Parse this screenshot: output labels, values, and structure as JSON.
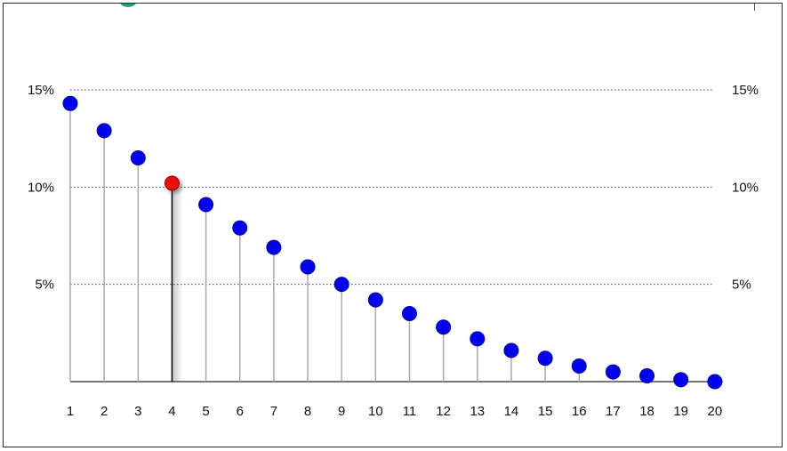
{
  "chart_data": {
    "type": "scatter",
    "style": "lollipop",
    "x": [
      1,
      2,
      3,
      4,
      5,
      6,
      7,
      8,
      9,
      10,
      11,
      12,
      13,
      14,
      15,
      16,
      17,
      18,
      19,
      20
    ],
    "series": [
      {
        "values": [
          14.3,
          12.9,
          11.5,
          10.2,
          9.1,
          7.9,
          6.9,
          5.9,
          5.0,
          4.2,
          3.5,
          2.8,
          2.2,
          1.6,
          1.2,
          0.8,
          0.5,
          0.3,
          0.1,
          0.0
        ]
      }
    ],
    "highlight_index": 3,
    "ylim": [
      0,
      15
    ],
    "y_ticks": [
      5,
      10,
      15
    ],
    "y_tick_labels": [
      "5%",
      "10%",
      "15%"
    ],
    "y_tick_labels_right": [
      "5%",
      "10%",
      "15%"
    ],
    "x_tick_labels": [
      "1",
      "2",
      "3",
      "4",
      "5",
      "6",
      "7",
      "8",
      "9",
      "10",
      "11",
      "12",
      "13",
      "14",
      "15",
      "16",
      "17",
      "18",
      "19",
      "20"
    ],
    "grid": "dotted-horizontal",
    "title": "",
    "xlabel": "",
    "ylabel": "",
    "colors": {
      "point": "#0000ee",
      "highlight": "#ee1111",
      "stem": "#aaaaaa",
      "highlight_stem": "#000000",
      "axis": "#777777",
      "grid": "#444444"
    }
  }
}
